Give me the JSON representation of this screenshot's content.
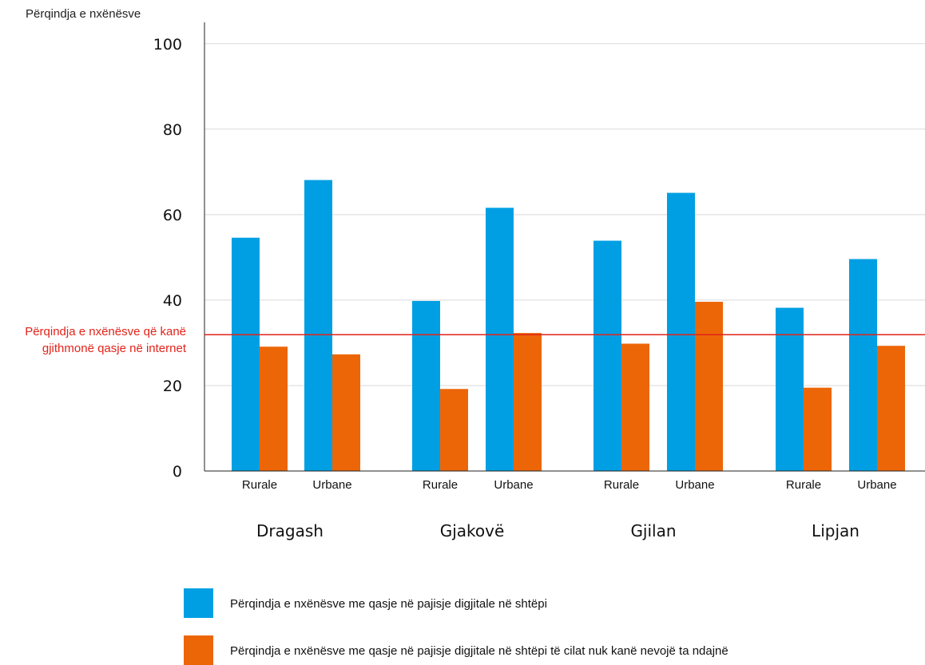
{
  "chart_data": {
    "type": "bar",
    "ylabel": "Përqindja e nxënësve",
    "ylim": [
      0,
      105
    ],
    "yticks": [
      0,
      20,
      40,
      60,
      80,
      100
    ],
    "grid": true,
    "groups": [
      "Dragash",
      "Gjakovë",
      "Gjilan",
      "Lipjan"
    ],
    "subcategories": [
      "Rurale",
      "Urbane",
      "Rurale",
      "Urbane",
      "Rurale",
      "Urbane",
      "Rurale",
      "Urbane"
    ],
    "series": [
      {
        "name": "Përqindja e nxënësve me qasje në pajisje digjitale në shtëpi",
        "color": "#009fe3",
        "values": [
          54.6,
          68.1,
          39.8,
          61.6,
          53.9,
          65.1,
          38.2,
          49.6
        ]
      },
      {
        "name": "Përqindja e nxënësve me qasje në pajisje digjitale në shtëpi të cilat nuk kanë nevojë ta ndajnë",
        "color": "#ec6608",
        "values": [
          29.1,
          27.3,
          19.2,
          32.3,
          29.8,
          39.6,
          19.5,
          29.3
        ]
      }
    ],
    "reference_line": {
      "value": 31.9,
      "color": "#e2231a",
      "label_lines": [
        "Përqindja e nxënësve që kanë",
        "gjithmonë qasje në internet"
      ]
    },
    "legend_position": "bottom"
  }
}
